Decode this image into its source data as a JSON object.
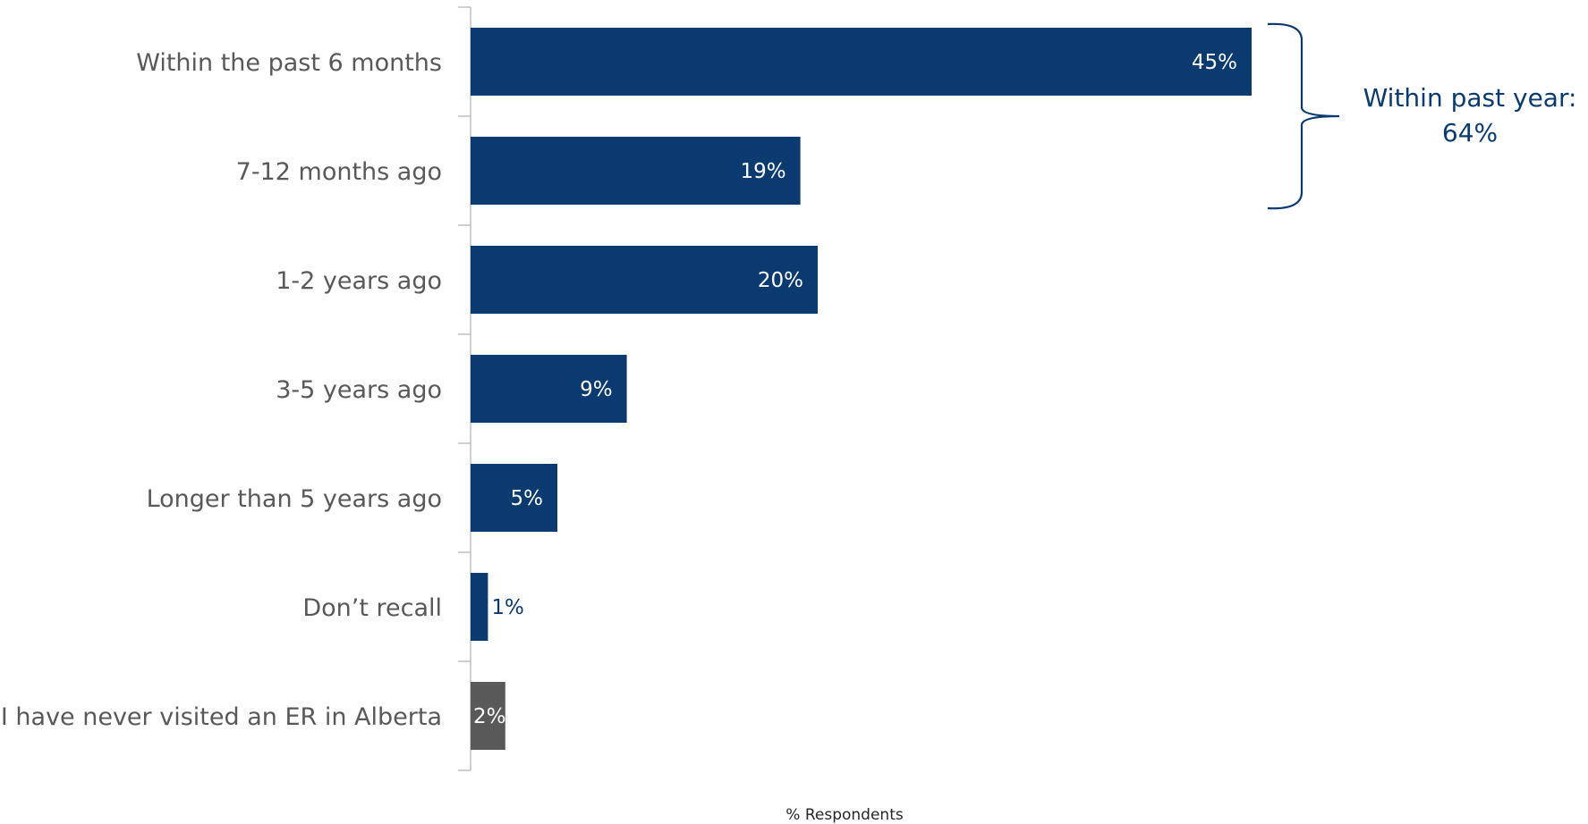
{
  "chart_data": {
    "type": "bar",
    "orientation": "horizontal",
    "categories": [
      "Within the past 6 months",
      "7-12 months ago",
      "1-2 years ago",
      "3-5 years ago",
      "Longer than 5 years ago",
      "Don’t recall",
      "I have never visited an ER in Alberta"
    ],
    "values": [
      45,
      19,
      20,
      9,
      5,
      1,
      2
    ],
    "value_labels": [
      "45%",
      "19%",
      "20%",
      "9%",
      "5%",
      "1%",
      "2%"
    ],
    "bar_colors": [
      "#0b3a70",
      "#0b3a70",
      "#0b3a70",
      "#0b3a70",
      "#0b3a70",
      "#0b3a70",
      "#595959"
    ],
    "xlabel": "% Respondents",
    "ylabel": "",
    "title": "",
    "xlim": [
      0,
      50
    ],
    "grid": false,
    "annotation": {
      "text_line1": "Within past year:",
      "text_line2": "64%",
      "brackets_categories": [
        "Within the past 6 months",
        "7-12 months ago"
      ],
      "color": "#0b3a70"
    }
  }
}
